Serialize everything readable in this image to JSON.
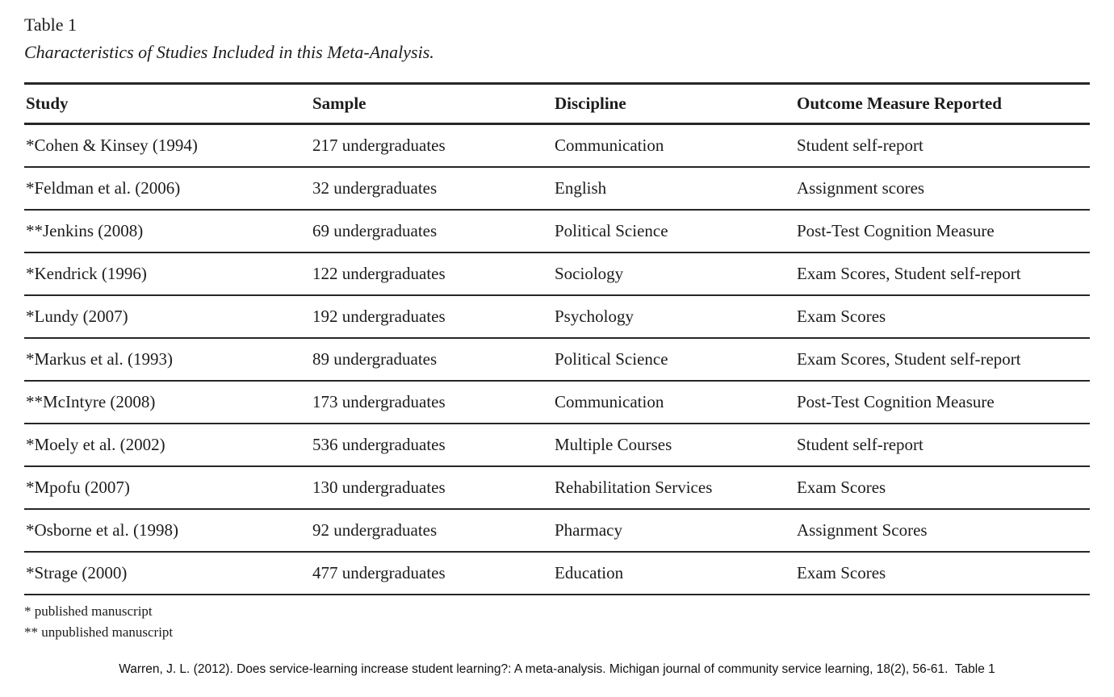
{
  "table_block": {
    "label": "Table 1",
    "caption": "Characteristics of Studies Included in this Meta-Analysis.",
    "columns": [
      "Study",
      "Sample",
      "Discipline",
      "Outcome Measure Reported"
    ],
    "rows": [
      [
        "*Cohen & Kinsey (1994)",
        "217 undergraduates",
        "Communication",
        "Student self-report"
      ],
      [
        "*Feldman et al. (2006)",
        "32 undergraduates",
        "English",
        "Assignment scores"
      ],
      [
        "**Jenkins (2008)",
        "69 undergraduates",
        "Political Science",
        "Post-Test Cognition Measure"
      ],
      [
        "*Kendrick (1996)",
        "122 undergraduates",
        "Sociology",
        "Exam Scores, Student self-report"
      ],
      [
        "*Lundy (2007)",
        "192 undergraduates",
        "Psychology",
        "Exam Scores"
      ],
      [
        "*Markus et al. (1993)",
        "89 undergraduates",
        "Political Science",
        "Exam Scores, Student self-report"
      ],
      [
        "**McIntyre (2008)",
        "173 undergraduates",
        "Communication",
        "Post-Test Cognition Measure"
      ],
      [
        "*Moely et al. (2002)",
        "536 undergraduates",
        "Multiple Courses",
        "Student self-report"
      ],
      [
        "*Mpofu (2007)",
        "130 undergraduates",
        "Rehabilitation Services",
        "Exam Scores"
      ],
      [
        "*Osborne et al. (1998)",
        "92 undergraduates",
        "Pharmacy",
        "Assignment Scores"
      ],
      [
        "*Strage (2000)",
        "477 undergraduates",
        "Education",
        "Exam Scores"
      ]
    ],
    "footnotes": [
      "* published manuscript",
      "** unpublished manuscript"
    ]
  },
  "citation": "Warren, J. L. (2012). Does service-learning increase student learning?: A meta-analysis. Michigan journal of community service learning, 18(2), 56-61.  Table 1",
  "colors": {
    "text": "#1c1c1c",
    "rule": "#262626",
    "background": "#ffffff"
  }
}
